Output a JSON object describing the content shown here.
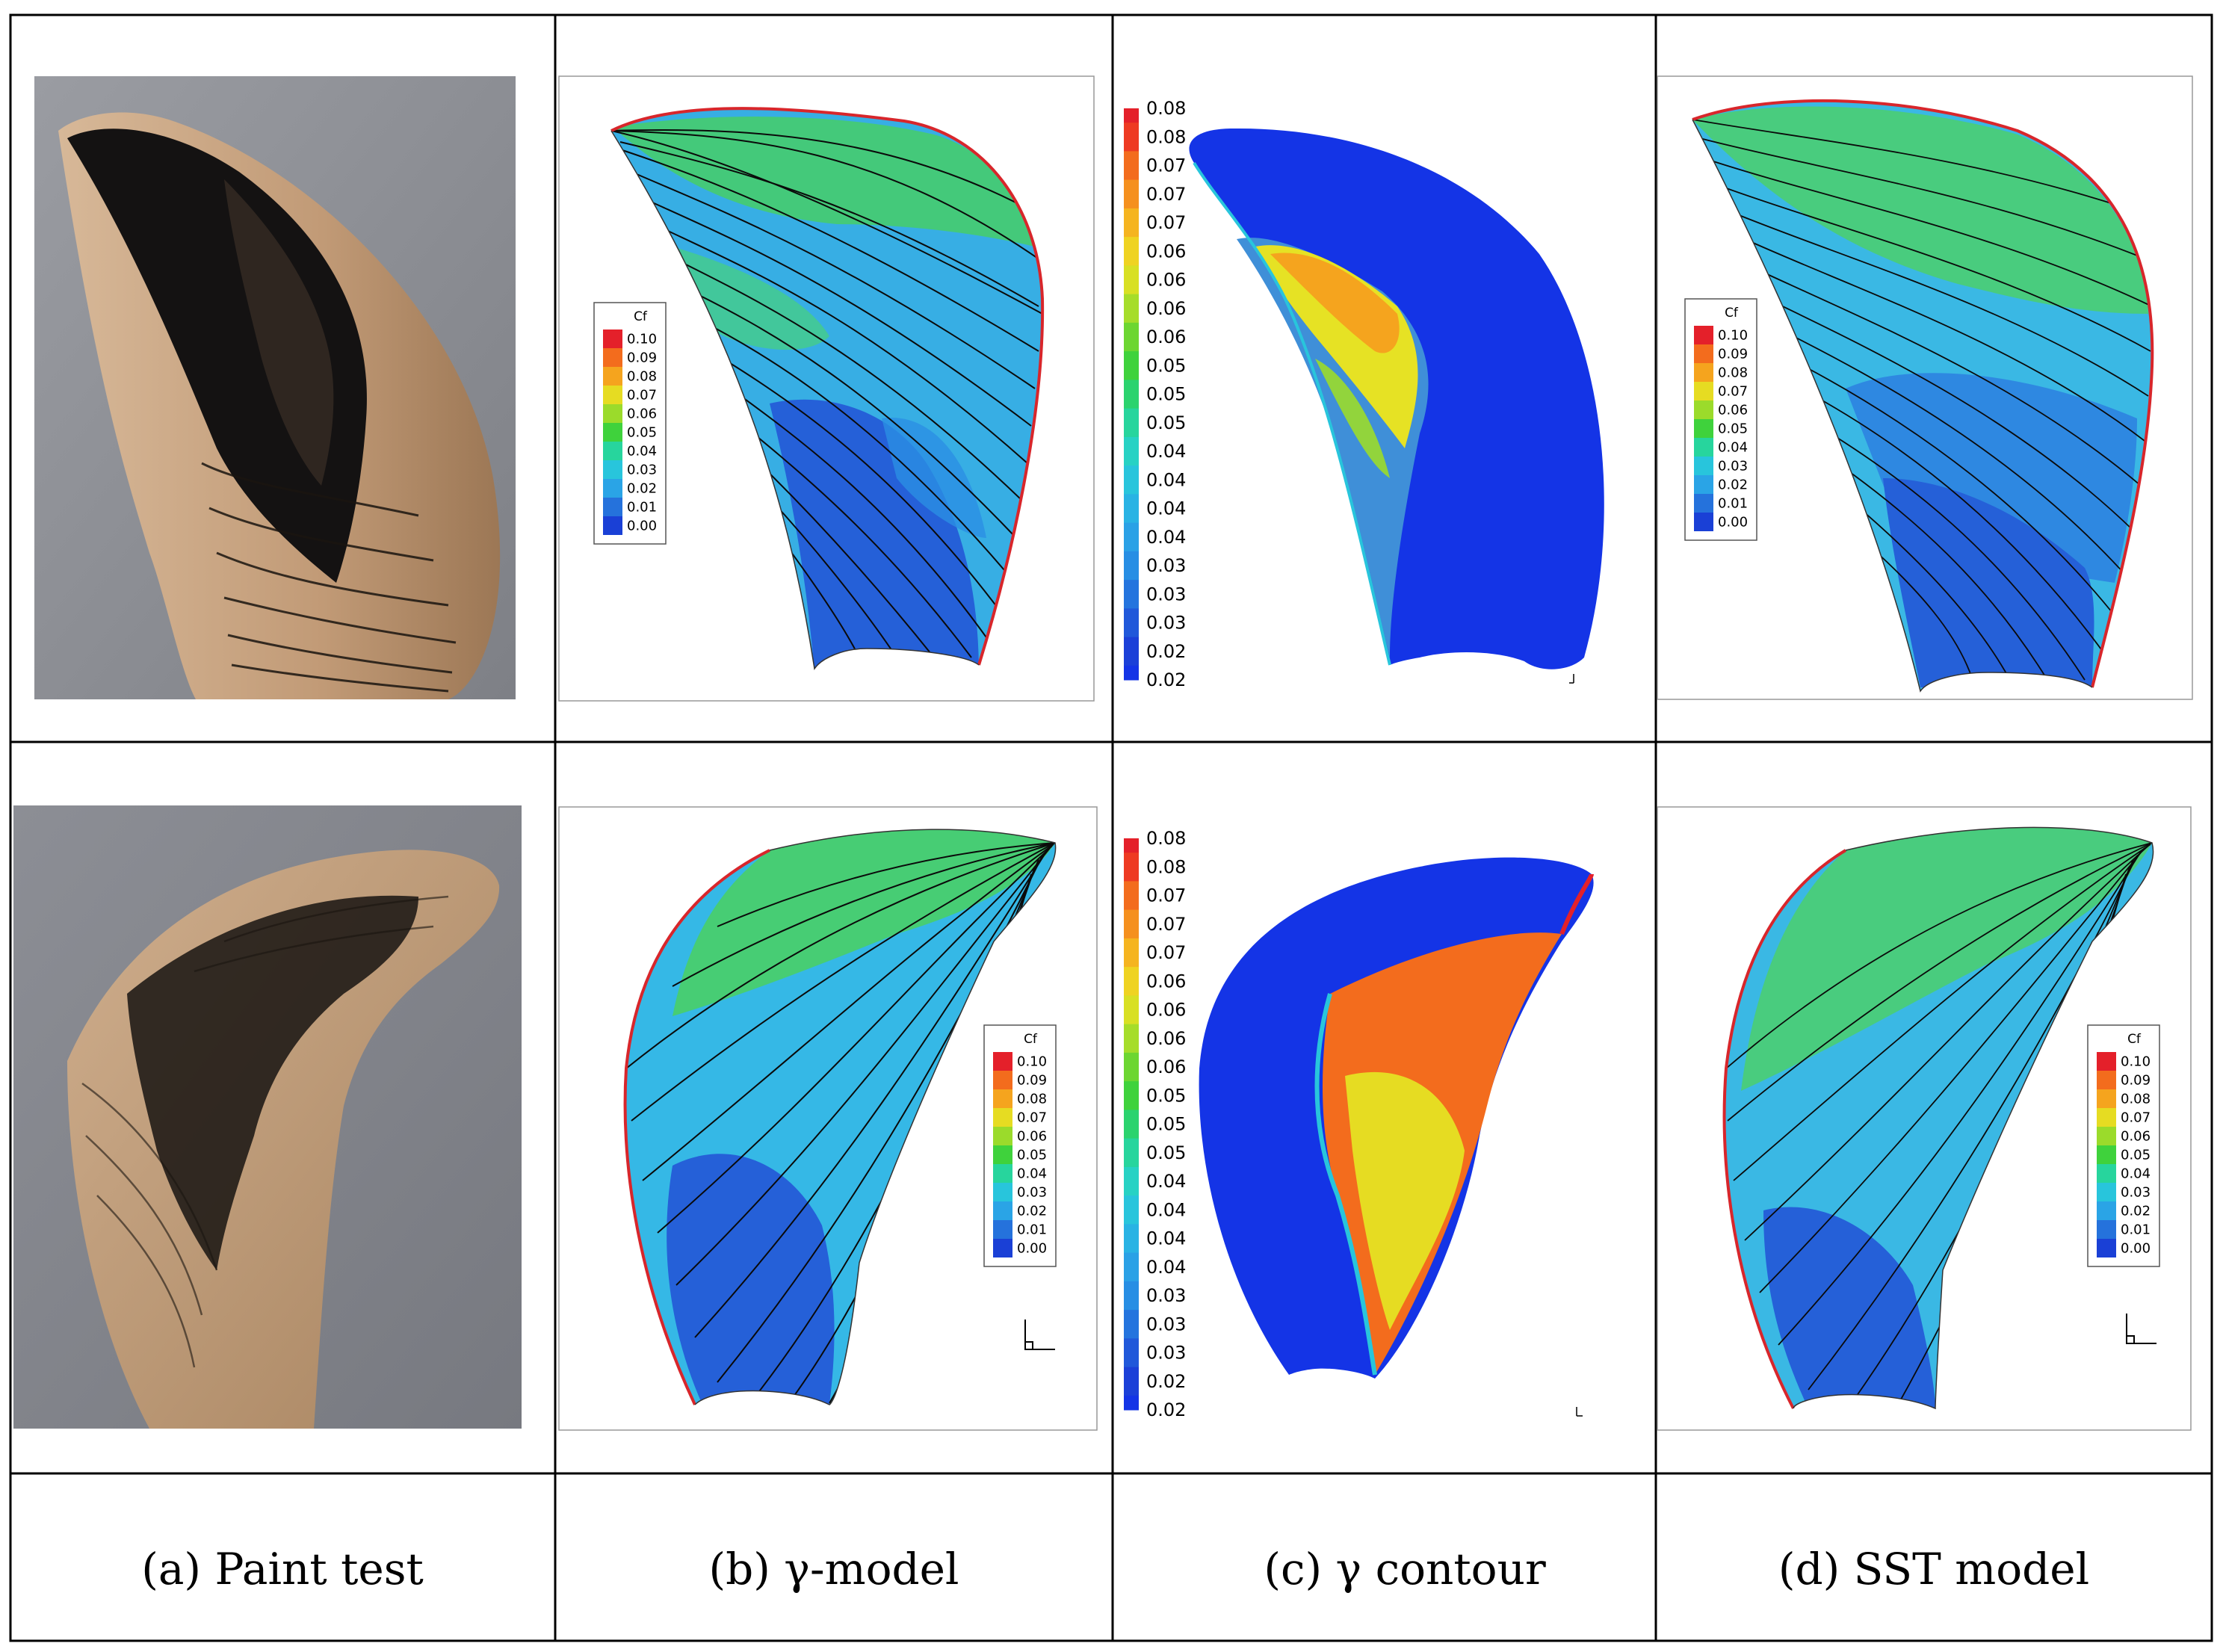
{
  "captions": [
    "(a) Paint test",
    "(b) γ-model",
    "(c) γ contour",
    "(d) SST model"
  ],
  "cf_legend": {
    "title": "Cf",
    "labels": [
      "0.10",
      "0.09",
      "0.08",
      "0.07",
      "0.06",
      "0.05",
      "0.04",
      "0.03",
      "0.02",
      "0.01",
      "0.00"
    ],
    "colors": [
      "#e4202a",
      "#f36c1d",
      "#f5a41e",
      "#e6dc22",
      "#9bdb2b",
      "#3fd23c",
      "#27d59d",
      "#28c5dc",
      "#2aa4e6",
      "#2572dc",
      "#1a40d6"
    ]
  },
  "gamma_bar": {
    "labels": [
      "0.08",
      "0.08",
      "0.07",
      "0.07",
      "0.07",
      "0.06",
      "0.06",
      "0.06",
      "0.06",
      "0.05",
      "0.05",
      "0.05",
      "0.04",
      "0.04",
      "0.04",
      "0.04",
      "0.03",
      "0.03",
      "0.03",
      "0.02",
      "0.02"
    ]
  },
  "axis": {
    "z": "z",
    "y": "y"
  },
  "colors": {
    "grid": "#000000",
    "blade_blue": "#2e7fe0",
    "blade_dark": "#2158d2",
    "blade_cyan": "#35b8e6",
    "blade_green": "#47cd74",
    "leading_edge": "#d8262b",
    "gamma_blue": "#1434e6",
    "photo_bg": "#8f9096",
    "bronze": "#c9a786"
  }
}
